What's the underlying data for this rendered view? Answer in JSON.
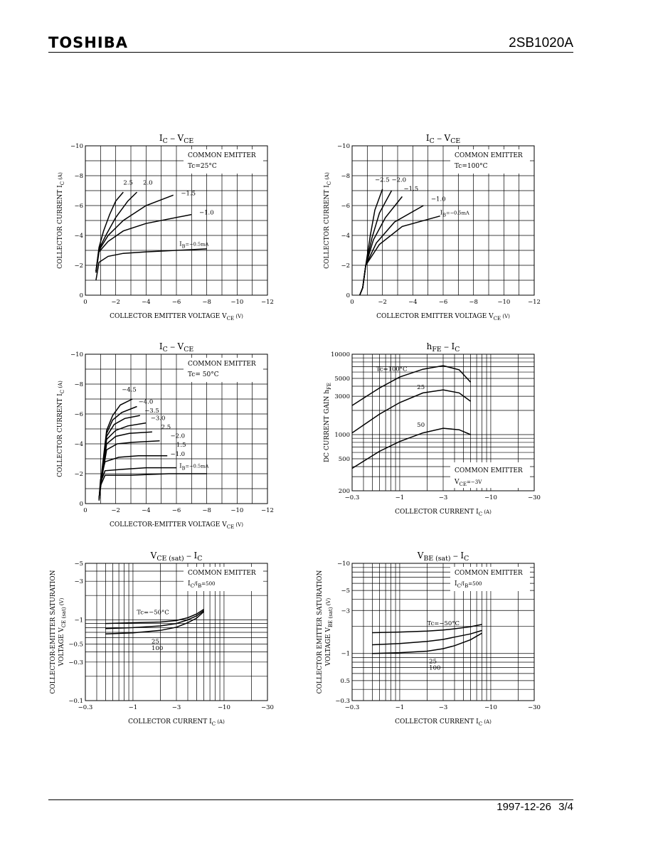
{
  "header": {
    "brand": "TOSHIBA",
    "part_number": "2SB1020A"
  },
  "footer": {
    "date": "1997-12-26",
    "page": "3/4"
  },
  "chart_data": [
    {
      "type": "line",
      "title_main": "I",
      "title_sub": "C",
      "title_sep": " − ",
      "title_main2": "V",
      "title_sub2": "CE",
      "xlabel": "COLLECTOR EMITTER VOLTAGE",
      "xsym": "V",
      "xsym_sub": "CE",
      "xunit": "(V)",
      "ylabel": "COLLECTOR CURRENT",
      "ysym": "I",
      "ysym_sub": "C",
      "yunit": "(A)",
      "xlim": [
        0,
        -12
      ],
      "ylim": [
        0,
        -10
      ],
      "xscale": "linear",
      "yscale": "linear",
      "xticks": [
        "0",
        "−2",
        "−4",
        "−6",
        "−8",
        "−10",
        "−12"
      ],
      "yticks": [
        "0",
        "−2",
        "−4",
        "−6",
        "−8",
        "−10"
      ],
      "annotation": [
        "COMMON EMITTER",
        "Tc=25°C"
      ],
      "series": [
        {
          "name": "2.5",
          "x": [
            -0.7,
            -0.9,
            -1.2,
            -1.6,
            -2.0,
            -2.5
          ],
          "y": [
            -1.6,
            -3.2,
            -4.3,
            -5.4,
            -6.3,
            -6.9
          ]
        },
        {
          "name": "2.0",
          "x": [
            -0.7,
            -0.9,
            -1.4,
            -2.0,
            -2.8,
            -3.4
          ],
          "y": [
            -1.6,
            -3.1,
            -4.1,
            -5.2,
            -6.3,
            -6.9
          ]
        },
        {
          "name": "−1.5",
          "x": [
            -0.7,
            -0.9,
            -1.5,
            -2.5,
            -4.0,
            -5.8
          ],
          "y": [
            -1.6,
            -3.0,
            -4.0,
            -5.0,
            -6.0,
            -6.7
          ]
        },
        {
          "name": "−1.0",
          "x": [
            -0.7,
            -0.9,
            -1.5,
            -2.5,
            -4.0,
            -7.0
          ],
          "y": [
            -1.5,
            -2.9,
            -3.6,
            -4.3,
            -4.8,
            -5.4
          ]
        },
        {
          "name": "I_B=−0.5mA",
          "x": [
            -0.7,
            -0.9,
            -1.5,
            -2.5,
            -4.0,
            -8.0
          ],
          "y": [
            -1.0,
            -2.2,
            -2.6,
            -2.8,
            -2.9,
            -3.1
          ]
        }
      ],
      "series_labels": [
        {
          "text": "2.5",
          "x": -2.5,
          "y": -7.4
        },
        {
          "text": "2.0",
          "x": -3.8,
          "y": -7.4
        },
        {
          "text": "−1.5",
          "x": -6.3,
          "y": -6.7
        },
        {
          "text": "−1.0",
          "x": -7.5,
          "y": -5.4
        },
        {
          "text": "I",
          "sub": "B",
          "rest": "=−0.5mA",
          "x": -6.2,
          "y": -3.3
        }
      ]
    },
    {
      "type": "line",
      "title_main": "I",
      "title_sub": "C",
      "title_sep": " − ",
      "title_main2": "V",
      "title_sub2": "CE",
      "xlabel": "COLLECTOR EMITTER VOLTAGE",
      "xsym": "V",
      "xsym_sub": "CE",
      "xunit": "(V)",
      "ylabel": "COLLECTOR CURRENT",
      "ysym": "I",
      "ysym_sub": "C",
      "yunit": "(A)",
      "xlim": [
        0,
        -12
      ],
      "ylim": [
        0,
        -10
      ],
      "xscale": "linear",
      "yscale": "linear",
      "xticks": [
        "0",
        "−2",
        "−4",
        "−6",
        "−8",
        "−10",
        "−12"
      ],
      "yticks": [
        "0",
        "−2",
        "−4",
        "−6",
        "−8",
        "−10"
      ],
      "annotation": [
        "COMMON EMITTER",
        "Tc=100°C"
      ],
      "series": [
        {
          "name": "−2.5",
          "x": [
            -0.5,
            -0.7,
            -0.9,
            -1.2,
            -1.5,
            -2.0
          ],
          "y": [
            0,
            -0.5,
            -2.0,
            -4.0,
            -5.7,
            -7.1
          ]
        },
        {
          "name": "−2.0",
          "x": [
            -0.5,
            -0.7,
            -0.9,
            -1.3,
            -1.8,
            -2.6
          ],
          "y": [
            0,
            -0.5,
            -2.0,
            -3.8,
            -5.5,
            -7.0
          ]
        },
        {
          "name": "−1.5",
          "x": [
            -0.5,
            -0.7,
            -0.9,
            -1.4,
            -2.2,
            -3.3
          ],
          "y": [
            0,
            -0.5,
            -2.0,
            -3.7,
            -5.2,
            -6.6
          ]
        },
        {
          "name": "−1.0",
          "x": [
            -0.5,
            -0.7,
            -0.9,
            -1.6,
            -2.8,
            -4.7
          ],
          "y": [
            0,
            -0.5,
            -2.0,
            -3.5,
            -4.9,
            -6.0
          ]
        },
        {
          "name": "I_B=−0.5mA",
          "x": [
            -0.5,
            -0.7,
            -0.9,
            -1.8,
            -3.3,
            -5.8
          ],
          "y": [
            0,
            -0.5,
            -2.0,
            -3.4,
            -4.6,
            -5.3
          ]
        }
      ],
      "series_labels": [
        {
          "text": "−2.5",
          "x": -1.5,
          "y": -7.6
        },
        {
          "text": "−2.0",
          "x": -2.6,
          "y": -7.6
        },
        {
          "text": "−1.5",
          "x": -3.4,
          "y": -7.0
        },
        {
          "text": "−1.0",
          "x": -5.2,
          "y": -6.3
        },
        {
          "text": "I",
          "sub": "B",
          "rest": "=−0.5mA",
          "x": -5.8,
          "y": -5.4
        }
      ]
    },
    {
      "type": "line",
      "title_main": "I",
      "title_sub": "C",
      "title_sep": " − ",
      "title_main2": "V",
      "title_sub2": "CE",
      "xlabel": "COLLECTOR-EMITTER VOLTAGE",
      "xsym": "V",
      "xsym_sub": "CE",
      "xunit": "(V)",
      "ylabel": "COLLECTOR CURRENT",
      "ysym": "I",
      "ysym_sub": "C",
      "yunit": "(A)",
      "xlim": [
        0,
        -12
      ],
      "ylim": [
        0,
        -10
      ],
      "xscale": "linear",
      "yscale": "linear",
      "xticks": [
        "0",
        "−2",
        "−4",
        "−6",
        "−8",
        "−10",
        "−12"
      ],
      "yticks": [
        "0",
        "−2",
        "−4",
        "−6",
        "−8",
        "−10"
      ],
      "annotation": [
        "COMMON EMITTER",
        "Tc= 50°C"
      ],
      "series": [
        {
          "name": "−4.5",
          "x": [
            -0.9,
            -1.1,
            -1.4,
            -1.8,
            -2.3,
            -3.1
          ],
          "y": [
            -0.3,
            -2.3,
            -4.9,
            -5.9,
            -6.6,
            -7.0
          ]
        },
        {
          "name": "−4.0",
          "x": [
            -0.9,
            -1.1,
            -1.4,
            -1.8,
            -2.4,
            -3.4
          ],
          "y": [
            -0.3,
            -2.2,
            -4.7,
            -5.6,
            -6.1,
            -6.5
          ]
        },
        {
          "name": "−3.5",
          "x": [
            -0.9,
            -1.1,
            -1.4,
            -1.9,
            -2.6,
            -3.6
          ],
          "y": [
            -0.3,
            -2.1,
            -4.5,
            -5.3,
            -5.7,
            -5.9
          ]
        },
        {
          "name": "−3.0",
          "x": [
            -0.9,
            -1.1,
            -1.4,
            -2.0,
            -2.8,
            -4.0
          ],
          "y": [
            -0.3,
            -2.0,
            -4.3,
            -4.9,
            -5.2,
            -5.4
          ]
        },
        {
          "name": "2.5",
          "x": [
            -0.9,
            -1.1,
            -1.4,
            -2.0,
            -2.9,
            -4.4
          ],
          "y": [
            -0.3,
            -1.9,
            -4.0,
            -4.5,
            -4.7,
            -4.8
          ]
        },
        {
          "name": "−2.0",
          "x": [
            -0.9,
            -1.1,
            -1.4,
            -2.1,
            -3.1,
            -4.9
          ],
          "y": [
            -0.3,
            -1.8,
            -3.6,
            -4.0,
            -4.1,
            -4.2
          ]
        },
        {
          "name": "1.5",
          "x": [
            -0.9,
            -1.0,
            -1.3,
            -2.2,
            -3.5,
            -5.4
          ],
          "y": [
            -0.3,
            -1.6,
            -2.8,
            -3.1,
            -3.2,
            -3.2
          ]
        },
        {
          "name": "−1.0",
          "x": [
            -0.9,
            -1.0,
            -1.3,
            -2.5,
            -4.0,
            -6.0
          ],
          "y": [
            -0.3,
            -1.4,
            -2.2,
            -2.3,
            -2.4,
            -2.4
          ]
        },
        {
          "name": "I_B=−0.5mA",
          "x": [
            -0.9,
            -1.0,
            -1.3,
            -3.0,
            -5.5,
            -8.0
          ],
          "y": [
            -0.2,
            -1.2,
            -1.9,
            -1.9,
            -2.0,
            -2.0
          ]
        }
      ],
      "series_labels": [
        {
          "text": "−4.5",
          "x": -2.4,
          "y": -7.5
        },
        {
          "text": "−4.0",
          "x": -3.5,
          "y": -6.7
        },
        {
          "text": "−3.5",
          "x": -3.9,
          "y": -6.1
        },
        {
          "text": "−3.0",
          "x": -4.3,
          "y": -5.6
        },
        {
          "text": "2.5",
          "x": -5.0,
          "y": -5.0
        },
        {
          "text": "−2.0",
          "x": -5.6,
          "y": -4.4
        },
        {
          "text": "1.5",
          "x": -6.0,
          "y": -3.8
        },
        {
          "text": "−1.0",
          "x": -5.6,
          "y": -3.2
        },
        {
          "text": "I",
          "sub": "B",
          "rest": "=−0.5mA",
          "x": -6.2,
          "y": -2.4
        }
      ]
    },
    {
      "type": "line",
      "title_main": "h",
      "title_sub": "FE",
      "title_sep": " − ",
      "title_main2": "I",
      "title_sub2": "C",
      "xlabel": "COLLECTOR CURRENT",
      "xsym": "I",
      "xsym_sub": "C",
      "xunit": "(A)",
      "ylabel": "DC CURRENT GAIN",
      "ysym": "h",
      "ysym_sub": "FE",
      "yunit": "",
      "xlim": [
        0.3,
        30
      ],
      "ylim": [
        200,
        10000
      ],
      "xscale": "log",
      "yscale": "log",
      "xticks_vals": [
        0.3,
        1,
        3,
        10,
        30
      ],
      "xticks": [
        "−0.3",
        "−1",
        "−3",
        "−10",
        "−30"
      ],
      "yticks_vals": [
        200,
        500,
        1000,
        3000,
        5000,
        10000
      ],
      "yticks": [
        "200",
        "500",
        "1000",
        "3000",
        "5000",
        "10000"
      ],
      "annotation_bottom": [
        "COMMON EMITTER",
        "V",
        "CE",
        "=−3V"
      ],
      "series": [
        {
          "name": "Tc=100°C",
          "x": [
            0.3,
            0.6,
            1,
            1.8,
            3,
            4.5,
            6
          ],
          "y": [
            2300,
            3800,
            5200,
            6500,
            7200,
            6400,
            4500
          ]
        },
        {
          "name": "25",
          "x": [
            0.3,
            0.6,
            1,
            1.8,
            3,
            4.5,
            6
          ],
          "y": [
            1050,
            1800,
            2500,
            3300,
            3600,
            3300,
            2600
          ]
        },
        {
          "name": "50",
          "x": [
            0.3,
            0.6,
            1,
            1.8,
            3,
            4.5,
            6
          ],
          "y": [
            380,
            620,
            820,
            1050,
            1200,
            1150,
            1000
          ]
        }
      ],
      "series_labels": [
        {
          "text": "Tc=100°C",
          "x": 0.55,
          "y": 6200
        },
        {
          "text": "25",
          "x": 1.55,
          "y": 3700
        },
        {
          "text": "50",
          "x": 1.55,
          "y": 1250
        }
      ]
    },
    {
      "type": "line",
      "title_main": "V",
      "title_sub": "CE (sat)",
      "title_sep": " − ",
      "title_main2": "I",
      "title_sub2": "C",
      "xlabel": "COLLECTOR CURRENT",
      "xsym": "I",
      "xsym_sub": "C",
      "xunit": "(A)",
      "ylabel": "COLLECTOR-EMITTER SATURATION",
      "ylabel2": "VOLTAGE",
      "ysym": "V",
      "ysym_sub": "CE (sat)",
      "yunit": "(V)",
      "xlim": [
        0.3,
        30
      ],
      "ylim": [
        0.1,
        5
      ],
      "xscale": "log",
      "yscale": "log",
      "xticks_vals": [
        0.3,
        1,
        3,
        10,
        30
      ],
      "xticks": [
        "−0.3",
        "−1",
        "−3",
        "−10",
        "−30"
      ],
      "yticks_vals": [
        0.1,
        0.3,
        0.5,
        1,
        3,
        5
      ],
      "yticks": [
        "−0.1",
        "−0.3",
        "−0.5",
        "−1",
        "−3",
        "−5"
      ],
      "annotation": [
        "COMMON EMITTER",
        "I",
        "C",
        "/I",
        "B",
        "=500"
      ],
      "series": [
        {
          "name": "Tc=−50°C",
          "x": [
            0.5,
            1,
            2,
            3,
            4,
            5,
            6
          ],
          "y": [
            0.9,
            0.92,
            0.94,
            0.98,
            1.06,
            1.18,
            1.35
          ]
        },
        {
          "name": "25",
          "x": [
            0.5,
            1,
            2,
            3,
            4,
            5,
            6
          ],
          "y": [
            0.78,
            0.8,
            0.84,
            0.9,
            1.0,
            1.12,
            1.3
          ]
        },
        {
          "name": "100",
          "x": [
            0.5,
            1,
            2,
            3,
            4,
            5,
            6
          ],
          "y": [
            0.67,
            0.69,
            0.74,
            0.81,
            0.92,
            1.05,
            1.26
          ]
        }
      ],
      "series_labels": [
        {
          "text": "Tc=−50°C",
          "x": 1.1,
          "y": 1.17
        },
        {
          "text": "25",
          "x": 1.6,
          "y": 0.51
        },
        {
          "text": "100",
          "x": 1.6,
          "y": 0.42
        }
      ]
    },
    {
      "type": "line",
      "title_main": "V",
      "title_sub": "BE (sat)",
      "title_sep": " − ",
      "title_main2": "I",
      "title_sub2": "C",
      "xlabel": "COLLECTOR CURRENT",
      "xsym": "I",
      "xsym_sub": "C",
      "xunit": "(A)",
      "ylabel": "COLLECTOR EMITTER SATURATION",
      "ylabel2": "VOLTAGE",
      "ysym": "V",
      "ysym_sub": "BE (sat)",
      "yunit": "(V)",
      "xlim": [
        0.3,
        30
      ],
      "ylim": [
        0.3,
        10
      ],
      "xscale": "log",
      "yscale": "log",
      "xticks_vals": [
        0.3,
        1,
        3,
        10,
        30
      ],
      "xticks": [
        "−0.3",
        "−1",
        "−3",
        "−10",
        "−30"
      ],
      "yticks_vals": [
        0.3,
        0.5,
        1,
        3,
        5,
        10
      ],
      "yticks": [
        "−0.3",
        "0.5",
        "−1",
        "−3",
        "−5",
        "−10"
      ],
      "annotation": [
        "COMMON EMITTER",
        "I",
        "C",
        "/I",
        "B",
        "=500"
      ],
      "series": [
        {
          "name": "Tc=−50°C",
          "x": [
            0.5,
            1,
            2,
            3,
            4,
            6,
            8
          ],
          "y": [
            1.7,
            1.73,
            1.77,
            1.82,
            1.88,
            1.98,
            2.1
          ]
        },
        {
          "name": "25",
          "x": [
            0.5,
            1,
            2,
            3,
            4,
            6,
            8
          ],
          "y": [
            1.25,
            1.29,
            1.36,
            1.43,
            1.52,
            1.65,
            1.8
          ]
        },
        {
          "name": "100",
          "x": [
            0.5,
            1,
            2,
            3,
            4,
            6,
            8
          ],
          "y": [
            1.0,
            1.02,
            1.06,
            1.13,
            1.22,
            1.42,
            1.68
          ]
        }
      ],
      "series_labels": [
        {
          "text": "Tc=−50°C",
          "x": 2.0,
          "y": 2.05
        },
        {
          "text": "25",
          "x": 2.1,
          "y": 0.78
        },
        {
          "text": "100",
          "x": 2.1,
          "y": 0.66
        }
      ]
    }
  ]
}
